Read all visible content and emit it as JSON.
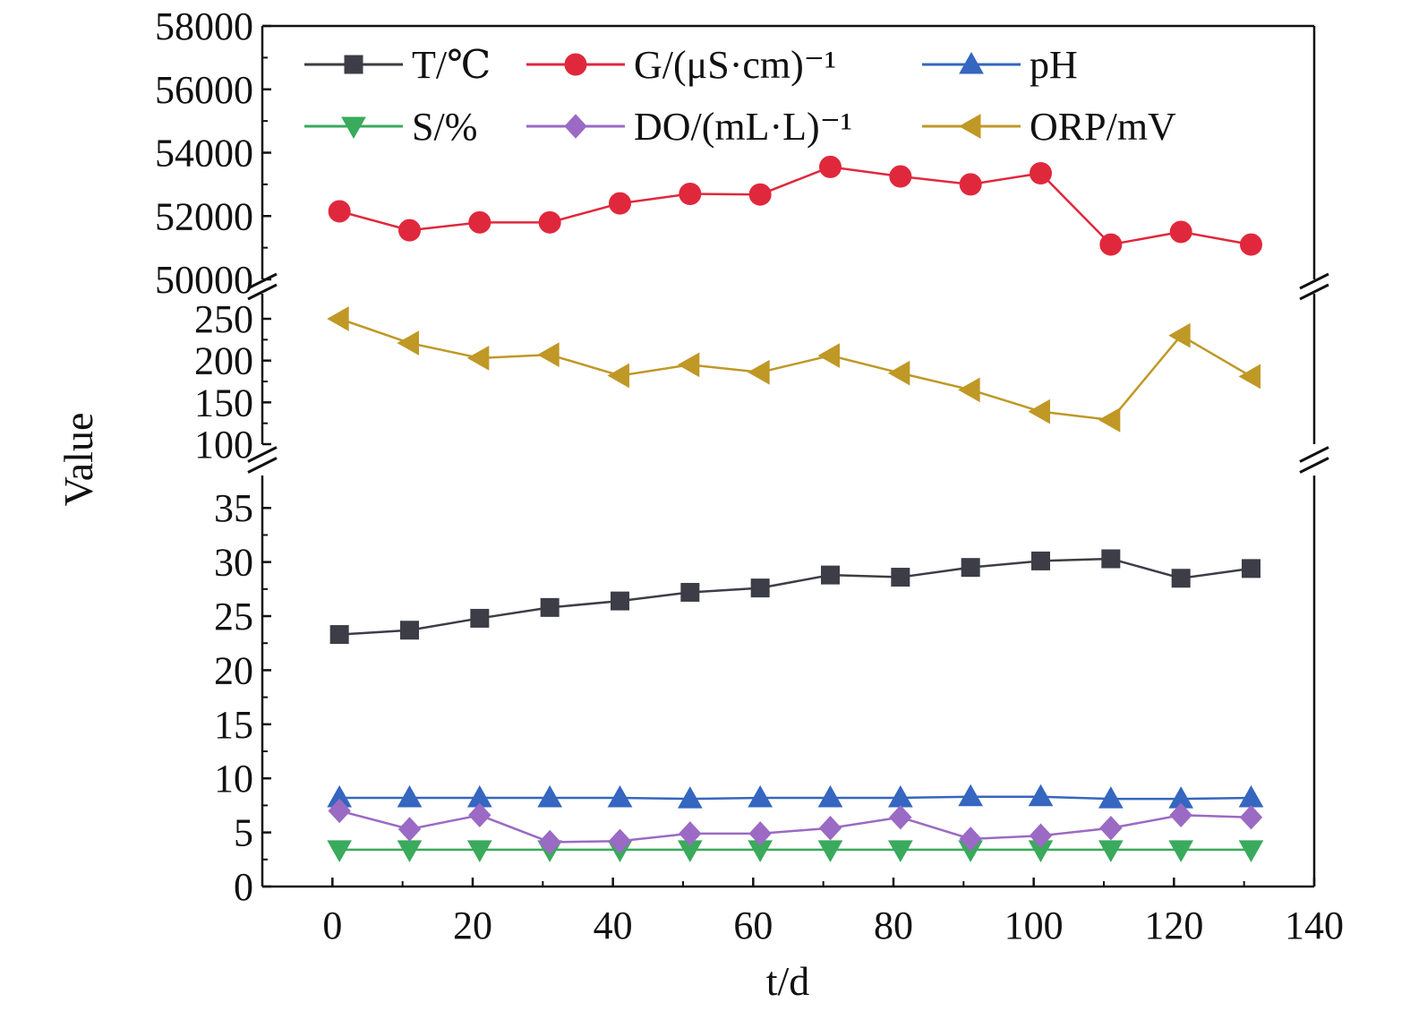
{
  "chart_data": {
    "type": "line",
    "xlabel": "t/d",
    "ylabel": "Value",
    "xlim": [
      -10,
      140
    ],
    "x_ticks": [
      "0",
      "20",
      "40",
      "60",
      "80",
      "100",
      "120",
      "140"
    ],
    "x": [
      1,
      11,
      21,
      31,
      41,
      51,
      61,
      71,
      81,
      91,
      101,
      111,
      121,
      131
    ],
    "y_axis_broken": true,
    "segments": [
      {
        "range": [
          0,
          38
        ],
        "ticks": [
          "0",
          "5",
          "10",
          "15",
          "20",
          "25",
          "30",
          "35"
        ]
      },
      {
        "range": [
          100,
          280
        ],
        "ticks": [
          "100",
          "150",
          "200",
          "250"
        ]
      },
      {
        "range": [
          50000,
          58000
        ],
        "ticks": [
          "50000",
          "52000",
          "54000",
          "56000",
          "58000"
        ]
      }
    ],
    "legend_position": "top",
    "series": [
      {
        "name": "T/℃",
        "marker": "square",
        "color": "#3d3d47",
        "segment": 0,
        "values": [
          23.3,
          23.7,
          24.8,
          25.8,
          26.4,
          27.2,
          27.6,
          28.8,
          28.6,
          29.5,
          30.1,
          30.3,
          28.5,
          29.4
        ]
      },
      {
        "name": "G/(μS·cm)⁻¹",
        "marker": "circle",
        "color": "#e0283c",
        "segment": 2,
        "values": [
          52150,
          51550,
          51800,
          51800,
          52400,
          52700,
          52680,
          53550,
          53250,
          53000,
          53350,
          51100,
          51500,
          51100
        ]
      },
      {
        "name": "pH",
        "marker": "triangle-up",
        "color": "#3566c0",
        "segment": 0,
        "values": [
          8.2,
          8.2,
          8.2,
          8.2,
          8.2,
          8.1,
          8.2,
          8.2,
          8.2,
          8.3,
          8.3,
          8.1,
          8.1,
          8.2
        ]
      },
      {
        "name": "S/%",
        "marker": "triangle-down",
        "color": "#3aaa5c",
        "segment": 0,
        "values": [
          3.4,
          3.4,
          3.4,
          3.4,
          3.4,
          3.4,
          3.4,
          3.4,
          3.4,
          3.4,
          3.4,
          3.4,
          3.4,
          3.4
        ]
      },
      {
        "name": "DO/(mL·L)⁻¹",
        "marker": "diamond",
        "color": "#9b6ac4",
        "segment": 0,
        "values": [
          7.0,
          5.3,
          6.6,
          4.1,
          4.2,
          4.9,
          4.9,
          5.4,
          6.4,
          4.4,
          4.7,
          5.4,
          6.6,
          6.4
        ]
      },
      {
        "name": "ORP/mV",
        "marker": "triangle-left",
        "color": "#bf9826",
        "segment": 1,
        "values": [
          250,
          221,
          203,
          207,
          182,
          195,
          186,
          206,
          185,
          165,
          139,
          129,
          230,
          181
        ]
      }
    ]
  }
}
